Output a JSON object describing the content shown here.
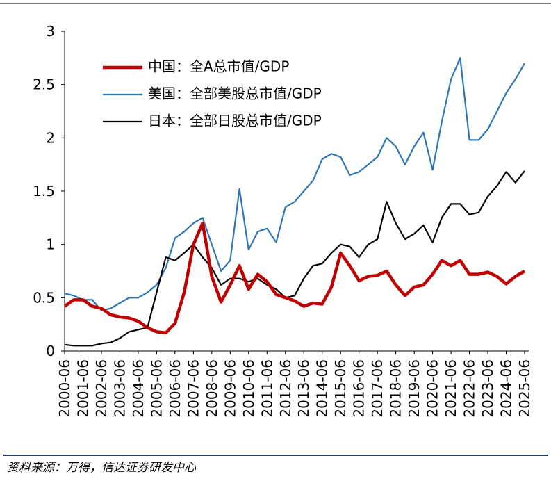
{
  "chart_data": {
    "type": "line",
    "categories": [
      "2000-06",
      null,
      "2001-06",
      null,
      "2002-06",
      null,
      "2003-06",
      null,
      "2004-06",
      null,
      "2005-06",
      null,
      "2006-06",
      null,
      "2007-06",
      null,
      "2008-06",
      null,
      "2009-06",
      null,
      "2010-06",
      null,
      "2011-06",
      null,
      "2012-06",
      null,
      "2013-06",
      null,
      "2014-06",
      null,
      "2015-06",
      null,
      "2016-06",
      null,
      "2017-06",
      null,
      "2018-06",
      null,
      "2019-06",
      null,
      "2020-06",
      null,
      "2021-06",
      null,
      "2022-06",
      null,
      "2023-06",
      null,
      "2024-06",
      null,
      "2025-06"
    ],
    "series": [
      {
        "name": "中国：全A总市值/GDP",
        "color": "#c00000",
        "width": 4.5,
        "values": [
          0.42,
          0.48,
          0.48,
          0.42,
          0.4,
          0.34,
          0.32,
          0.31,
          0.28,
          0.22,
          0.18,
          0.17,
          0.26,
          0.55,
          1.0,
          1.2,
          0.7,
          0.46,
          0.62,
          0.8,
          0.58,
          0.72,
          0.65,
          0.53,
          0.5,
          0.47,
          0.42,
          0.45,
          0.44,
          0.6,
          0.92,
          0.8,
          0.66,
          0.7,
          0.71,
          0.75,
          0.62,
          0.52,
          0.6,
          0.62,
          0.72,
          0.85,
          0.8,
          0.85,
          0.72,
          0.72,
          0.74,
          0.7,
          0.63,
          0.7,
          0.75
        ]
      },
      {
        "name": "美国：全部美股总市值/GDP",
        "color": "#2e75b6",
        "width": 2.2,
        "values": [
          0.54,
          0.52,
          0.48,
          0.48,
          0.38,
          0.4,
          0.45,
          0.5,
          0.5,
          0.55,
          0.62,
          0.78,
          1.06,
          1.12,
          1.2,
          1.25,
          1.0,
          0.75,
          0.85,
          1.52,
          0.95,
          1.12,
          1.15,
          1.02,
          1.35,
          1.4,
          1.5,
          1.6,
          1.8,
          1.85,
          1.82,
          1.65,
          1.68,
          1.75,
          1.82,
          2.0,
          1.92,
          1.75,
          1.92,
          2.05,
          1.7,
          2.15,
          2.55,
          2.75,
          1.98,
          1.98,
          2.08,
          2.25,
          2.42,
          2.55,
          2.7
        ]
      },
      {
        "name": "日本：全部日股总市值/GDP",
        "color": "#000000",
        "width": 2.2,
        "values": [
          0.06,
          0.05,
          0.05,
          0.05,
          0.07,
          0.08,
          0.12,
          0.18,
          0.2,
          0.22,
          0.55,
          0.88,
          0.85,
          0.92,
          1.0,
          0.88,
          0.78,
          0.62,
          0.68,
          0.68,
          0.65,
          0.68,
          0.62,
          0.58,
          0.5,
          0.52,
          0.68,
          0.8,
          0.82,
          0.92,
          1.0,
          0.98,
          0.88,
          1.0,
          1.05,
          1.4,
          1.2,
          1.05,
          1.1,
          1.18,
          1.02,
          1.25,
          1.38,
          1.38,
          1.28,
          1.3,
          1.45,
          1.55,
          1.68,
          1.58,
          1.69
        ]
      }
    ],
    "ylim": [
      0,
      3
    ],
    "yticks": [
      0,
      0.5,
      1,
      1.5,
      2,
      2.5,
      3
    ],
    "source": "资料来源：万得，信达证券研发中心"
  }
}
